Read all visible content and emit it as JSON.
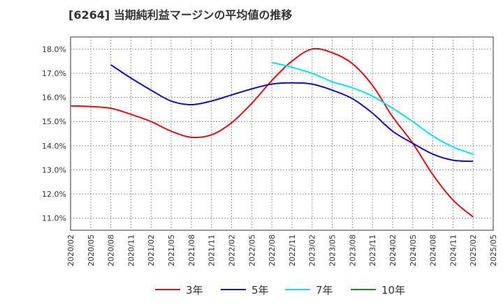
{
  "title": "[6264]  当期純利益マージンの平均値の推移",
  "chart_data": {
    "type": "line",
    "title": "[6264]  当期純利益マージンの平均値の推移",
    "xlabel": "",
    "ylabel": "",
    "x_ticks": [
      "2020/02",
      "2020/05",
      "2020/08",
      "2020/11",
      "2021/02",
      "2021/05",
      "2021/08",
      "2021/11",
      "2022/02",
      "2022/05",
      "2022/08",
      "2022/11",
      "2023/02",
      "2023/05",
      "2023/08",
      "2023/11",
      "2024/02",
      "2024/05",
      "2024/08",
      "2024/11",
      "2025/02",
      "2025/05"
    ],
    "y_ticks": [
      "11.0%",
      "12.0%",
      "13.0%",
      "14.0%",
      "15.0%",
      "16.0%",
      "17.0%",
      "18.0%"
    ],
    "ylim": [
      10.5,
      18.5
    ],
    "grid": true,
    "legend_position": "bottom",
    "series": [
      {
        "name": "3年",
        "color": "#dd1111",
        "x": [
          "2020/02",
          "2020/05",
          "2020/08",
          "2020/11",
          "2021/02",
          "2021/05",
          "2021/08",
          "2021/11",
          "2022/02",
          "2022/05",
          "2022/08",
          "2022/11",
          "2023/02",
          "2023/05",
          "2023/08",
          "2023/11",
          "2024/02",
          "2024/05",
          "2024/08",
          "2024/11",
          "2025/02"
        ],
        "values": [
          15.65,
          15.62,
          15.55,
          15.3,
          15.0,
          14.6,
          14.35,
          14.45,
          14.95,
          15.75,
          16.7,
          17.5,
          18.0,
          17.85,
          17.4,
          16.5,
          15.2,
          14.1,
          12.8,
          11.75,
          11.05
        ]
      },
      {
        "name": "5年",
        "color": "#1111bb",
        "x": [
          "2020/08",
          "2020/11",
          "2021/02",
          "2021/05",
          "2021/08",
          "2021/11",
          "2022/02",
          "2022/05",
          "2022/08",
          "2022/11",
          "2023/02",
          "2023/05",
          "2023/08",
          "2023/11",
          "2024/02",
          "2024/05",
          "2024/08",
          "2024/11",
          "2025/02"
        ],
        "values": [
          17.35,
          16.8,
          16.3,
          15.85,
          15.7,
          15.85,
          16.1,
          16.35,
          16.55,
          16.6,
          16.55,
          16.3,
          15.95,
          15.35,
          14.6,
          14.1,
          13.65,
          13.4,
          13.35
        ]
      },
      {
        "name": "7年",
        "color": "#00e5ee",
        "x": [
          "2022/08",
          "2022/11",
          "2023/02",
          "2023/05",
          "2023/08",
          "2023/11",
          "2024/02",
          "2024/05",
          "2024/08",
          "2024/11",
          "2025/02"
        ],
        "values": [
          17.45,
          17.25,
          17.0,
          16.65,
          16.4,
          16.05,
          15.55,
          15.0,
          14.4,
          13.95,
          13.65
        ]
      },
      {
        "name": "10年",
        "color": "#228b22",
        "x": [],
        "values": []
      }
    ]
  }
}
